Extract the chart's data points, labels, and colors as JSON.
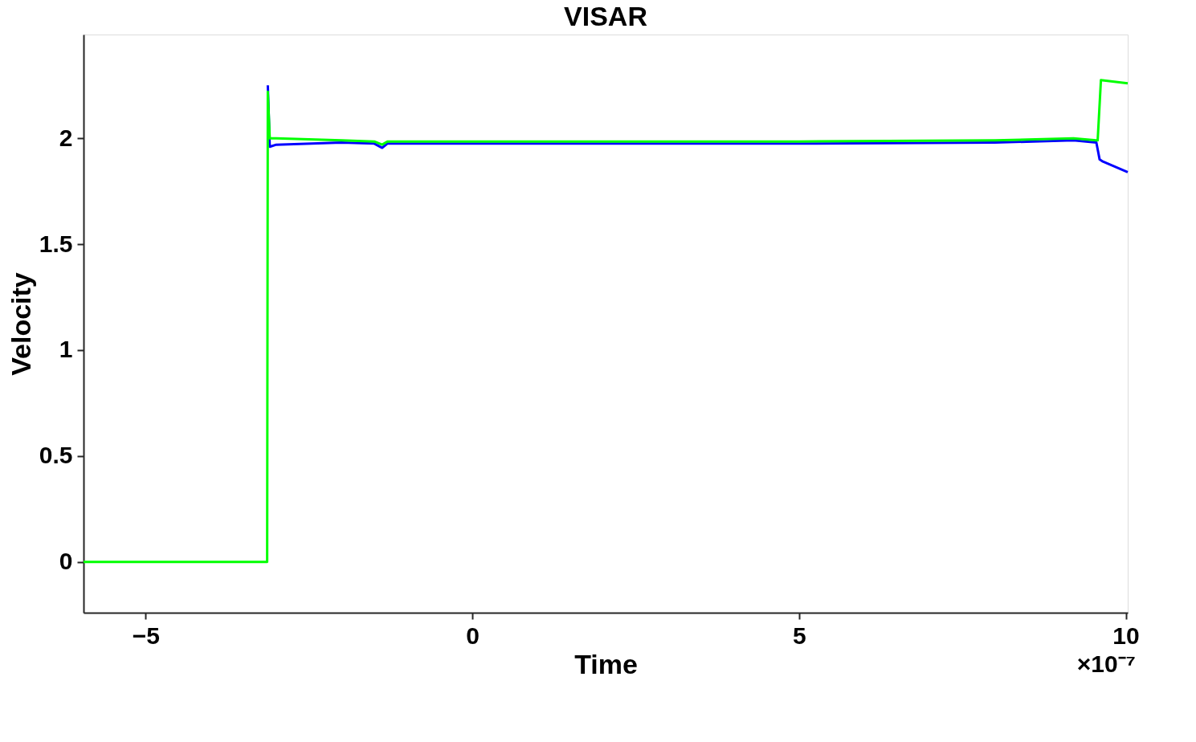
{
  "chart_data": {
    "type": "line",
    "title": "VISAR",
    "xlabel": "Time",
    "ylabel": "Velocity",
    "xlim": [
      -5.95,
      10.03
    ],
    "xticks": [
      -5,
      0,
      5,
      10
    ],
    "ylim": [
      -0.24,
      2.49
    ],
    "yticks": [
      0,
      0.5,
      1,
      1.5,
      2
    ],
    "grid": false,
    "legend": false,
    "annotations": [
      "×10⁻⁷"
    ],
    "series": [
      {
        "color": "#0000ff",
        "x": [
          -3.13,
          -3.1,
          -3.0,
          -2.0,
          -1.5,
          -1.38,
          -1.3,
          0,
          2,
          5,
          8,
          9.2,
          9.55,
          9.6,
          9.65,
          10.03
        ],
        "values": [
          2.25,
          1.96,
          1.97,
          1.98,
          1.975,
          1.955,
          1.975,
          1.975,
          1.975,
          1.975,
          1.98,
          1.99,
          1.98,
          1.9,
          1.89,
          1.84
        ]
      },
      {
        "color": "#00ff00",
        "x": [
          -5.95,
          -4.5,
          -3.5,
          -3.14,
          -3.13,
          -3.1,
          -3.0,
          -2.0,
          -1.5,
          -1.38,
          -1.3,
          0,
          2,
          5,
          8,
          9.2,
          9.55,
          9.57,
          9.62,
          10.03
        ],
        "values": [
          0,
          0,
          0,
          0,
          2.22,
          2.0,
          2.0,
          1.99,
          1.985,
          1.97,
          1.985,
          1.985,
          1.985,
          1.985,
          1.99,
          2.0,
          1.99,
          1.99,
          2.275,
          2.26
        ]
      }
    ]
  }
}
